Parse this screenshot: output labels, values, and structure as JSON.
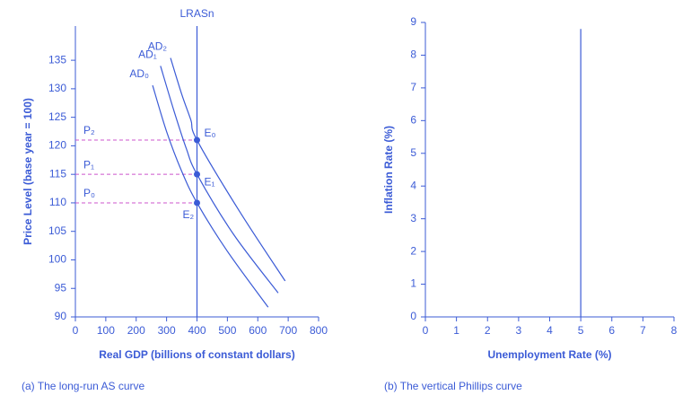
{
  "chart_data": [
    {
      "type": "line",
      "caption": "(a) The long-run AS curve",
      "xlabel": "Real GDP (billions of constant dollars)",
      "ylabel": "Price Level (base year = 100)",
      "xlim": [
        0,
        800
      ],
      "ylim": [
        90,
        141
      ],
      "xticks": [
        0,
        100,
        200,
        300,
        400,
        500,
        600,
        700,
        800
      ],
      "yticks": [
        90,
        95,
        100,
        105,
        110,
        115,
        120,
        125,
        130,
        135
      ],
      "color": "#3b5bd6",
      "vline": {
        "label": "LRASn",
        "x": 400,
        "y": [
          90,
          141
        ]
      },
      "series": [
        {
          "name": "AD₀",
          "x": [
            254,
            300,
            350,
            400,
            500,
            634
          ],
          "values": [
            130.6,
            122.5,
            115.5,
            110,
            101.5,
            91.7
          ]
        },
        {
          "name": "AD₁",
          "x": [
            280,
            325,
            365,
            400,
            520,
            667
          ],
          "values": [
            134,
            126,
            119.5,
            115,
            104.5,
            94.2
          ]
        },
        {
          "name": "AD₂",
          "x": [
            313,
            350,
            380,
            400,
            540,
            690
          ],
          "values": [
            135.4,
            129,
            124.5,
            121,
            108.5,
            96.3
          ]
        }
      ],
      "points": {
        "labels": [
          "E₂",
          "E₁",
          "E₀"
        ],
        "x": [
          400,
          400,
          400
        ],
        "values": [
          110,
          115,
          121
        ]
      },
      "levels": {
        "labels": [
          "P₀",
          "P₁",
          "P₂"
        ],
        "values": [
          110,
          115,
          121
        ],
        "color": "#cc55cc"
      }
    },
    {
      "type": "line",
      "caption": "(b) The vertical Phillips curve",
      "xlabel": "Unemployment Rate (%)",
      "ylabel": "Inflation Rate (%)",
      "xlim": [
        0,
        8
      ],
      "ylim": [
        0,
        9
      ],
      "xticks": [
        0,
        1,
        2,
        3,
        4,
        5,
        6,
        7,
        8
      ],
      "yticks": [
        0,
        1,
        2,
        3,
        4,
        5,
        6,
        7,
        8,
        9
      ],
      "color": "#3b5bd6",
      "vline": {
        "x": 5,
        "y": [
          0,
          8.8
        ]
      }
    }
  ]
}
